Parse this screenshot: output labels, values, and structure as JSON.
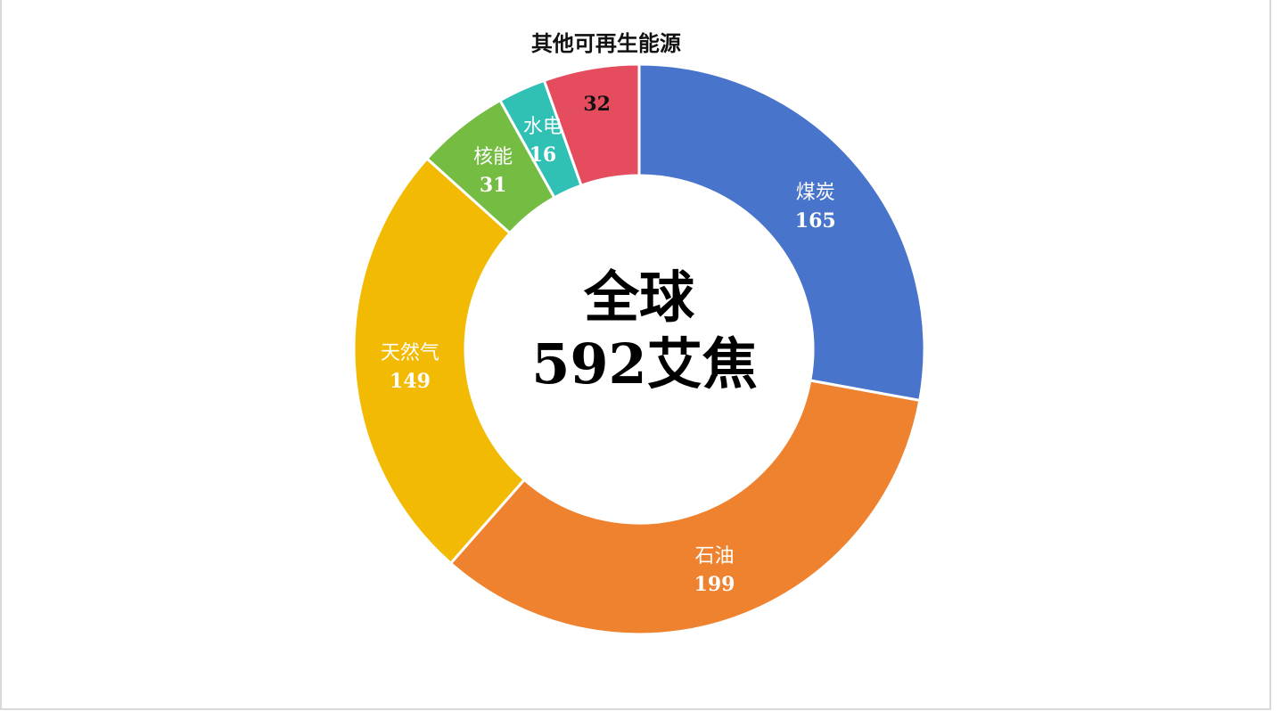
{
  "chart_data": {
    "type": "pie",
    "variant": "donut",
    "center": {
      "line1": "全球",
      "line2": "592艾焦"
    },
    "slices": [
      {
        "name": "煤炭",
        "value": 165,
        "color": "#4874CB",
        "label_color": "#ffffff",
        "label_position": "inside"
      },
      {
        "name": "石油",
        "value": 199,
        "color": "#EE822F",
        "label_color": "#ffffff",
        "label_position": "inside"
      },
      {
        "name": "天然气",
        "value": 149,
        "color": "#F2BA02",
        "label_color": "#ffffff",
        "label_position": "inside"
      },
      {
        "name": "核能",
        "value": 31,
        "color": "#75BD42",
        "label_color": "#ffffff",
        "label_position": "inside"
      },
      {
        "name": "水电",
        "value": 16,
        "color": "#30C0B4",
        "label_color": "#ffffff",
        "label_position": "inside"
      },
      {
        "name": "其他可再生能源",
        "value": 32,
        "color": "#E54C5E",
        "label_color": "#111111",
        "label_position": "outside"
      }
    ],
    "start_angle_deg": 0,
    "direction": "clockwise"
  }
}
